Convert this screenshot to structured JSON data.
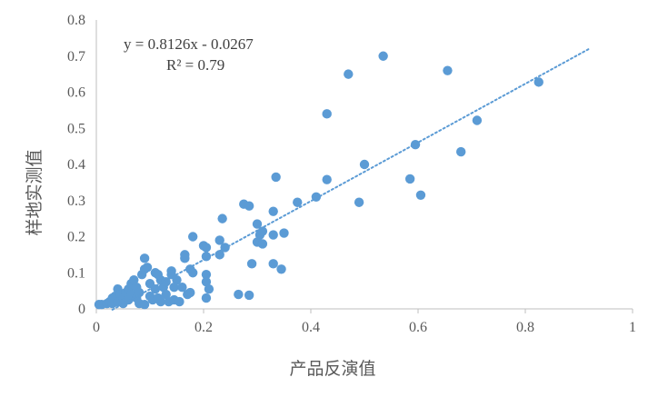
{
  "chart_data": {
    "type": "scatter",
    "title": "",
    "xlabel": "产品反演值",
    "ylabel": "样地实测值",
    "xlim": [
      0,
      1
    ],
    "ylim": [
      0,
      0.8
    ],
    "x_ticks": [
      "0",
      "0.2",
      "0.4",
      "0.6",
      "0.8",
      "1"
    ],
    "y_ticks": [
      "0",
      "0.1",
      "0.2",
      "0.3",
      "0.4",
      "0.5",
      "0.6",
      "0.7",
      "0.8"
    ],
    "grid": false,
    "colors": {
      "points": "#5b9bd5",
      "trendline": "#5b9bd5",
      "axis": "#bfbfbf",
      "text": "#595959"
    },
    "trendline": {
      "slope": 0.8126,
      "intercept": -0.0267,
      "x_range": [
        0.03,
        0.92
      ],
      "style": "dotted",
      "equation_label": "y = 0.8126x - 0.0267",
      "r2_label": "R² = 0.79"
    },
    "points": [
      [
        0.005,
        0.012
      ],
      [
        0.01,
        0.012
      ],
      [
        0.02,
        0.015
      ],
      [
        0.025,
        0.02
      ],
      [
        0.03,
        0.015
      ],
      [
        0.03,
        0.03
      ],
      [
        0.035,
        0.035
      ],
      [
        0.04,
        0.02
      ],
      [
        0.04,
        0.055
      ],
      [
        0.045,
        0.04
      ],
      [
        0.05,
        0.03
      ],
      [
        0.05,
        0.015
      ],
      [
        0.055,
        0.045
      ],
      [
        0.06,
        0.055
      ],
      [
        0.06,
        0.025
      ],
      [
        0.065,
        0.07
      ],
      [
        0.065,
        0.04
      ],
      [
        0.07,
        0.08
      ],
      [
        0.075,
        0.06
      ],
      [
        0.075,
        0.03
      ],
      [
        0.08,
        0.045
      ],
      [
        0.08,
        0.015
      ],
      [
        0.085,
        0.095
      ],
      [
        0.09,
        0.11
      ],
      [
        0.09,
        0.14
      ],
      [
        0.09,
        0.012
      ],
      [
        0.095,
        0.115
      ],
      [
        0.1,
        0.07
      ],
      [
        0.1,
        0.035
      ],
      [
        0.105,
        0.025
      ],
      [
        0.11,
        0.1
      ],
      [
        0.11,
        0.055
      ],
      [
        0.115,
        0.095
      ],
      [
        0.115,
        0.03
      ],
      [
        0.12,
        0.08
      ],
      [
        0.12,
        0.02
      ],
      [
        0.125,
        0.06
      ],
      [
        0.13,
        0.04
      ],
      [
        0.13,
        0.075
      ],
      [
        0.135,
        0.02
      ],
      [
        0.14,
        0.105
      ],
      [
        0.14,
        0.095
      ],
      [
        0.145,
        0.06
      ],
      [
        0.145,
        0.025
      ],
      [
        0.15,
        0.08
      ],
      [
        0.155,
        0.02
      ],
      [
        0.16,
        0.06
      ],
      [
        0.165,
        0.15
      ],
      [
        0.165,
        0.14
      ],
      [
        0.17,
        0.04
      ],
      [
        0.175,
        0.11
      ],
      [
        0.175,
        0.045
      ],
      [
        0.18,
        0.1
      ],
      [
        0.18,
        0.2
      ],
      [
        0.2,
        0.175
      ],
      [
        0.205,
        0.17
      ],
      [
        0.205,
        0.145
      ],
      [
        0.205,
        0.095
      ],
      [
        0.205,
        0.075
      ],
      [
        0.205,
        0.03
      ],
      [
        0.21,
        0.055
      ],
      [
        0.23,
        0.15
      ],
      [
        0.23,
        0.19
      ],
      [
        0.235,
        0.25
      ],
      [
        0.24,
        0.17
      ],
      [
        0.265,
        0.04
      ],
      [
        0.275,
        0.29
      ],
      [
        0.285,
        0.285
      ],
      [
        0.285,
        0.038
      ],
      [
        0.29,
        0.125
      ],
      [
        0.3,
        0.235
      ],
      [
        0.3,
        0.185
      ],
      [
        0.305,
        0.205
      ],
      [
        0.31,
        0.215
      ],
      [
        0.31,
        0.18
      ],
      [
        0.33,
        0.27
      ],
      [
        0.33,
        0.205
      ],
      [
        0.33,
        0.125
      ],
      [
        0.335,
        0.365
      ],
      [
        0.345,
        0.11
      ],
      [
        0.35,
        0.21
      ],
      [
        0.375,
        0.295
      ],
      [
        0.41,
        0.31
      ],
      [
        0.43,
        0.358
      ],
      [
        0.43,
        0.54
      ],
      [
        0.47,
        0.65
      ],
      [
        0.49,
        0.295
      ],
      [
        0.5,
        0.4
      ],
      [
        0.535,
        0.7
      ],
      [
        0.585,
        0.36
      ],
      [
        0.595,
        0.455
      ],
      [
        0.605,
        0.315
      ],
      [
        0.655,
        0.66
      ],
      [
        0.68,
        0.435
      ],
      [
        0.71,
        0.522
      ],
      [
        0.825,
        0.628
      ]
    ]
  }
}
